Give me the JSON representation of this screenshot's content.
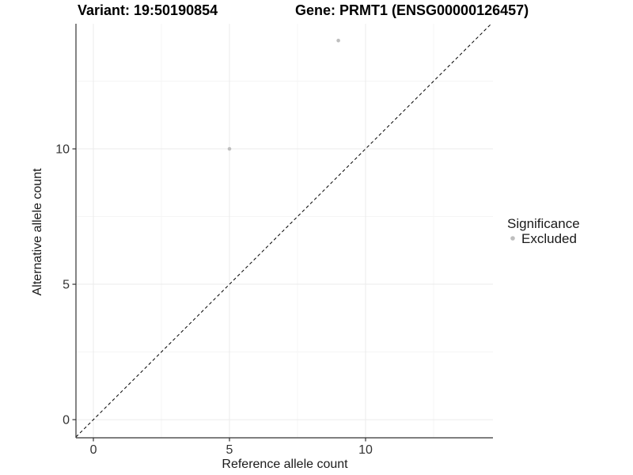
{
  "chart_data": {
    "type": "scatter",
    "title_left": "Variant: 19:50190854",
    "title_right": "Gene: PRMT1 (ENSG00000126457)",
    "xlabel": "Reference allele count",
    "ylabel": "Alternative allele count",
    "x_ticks": [
      0,
      5,
      10
    ],
    "y_ticks": [
      0,
      5,
      10
    ],
    "x_minor_ticks": [
      2.5,
      7.5,
      12.5
    ],
    "y_minor_ticks": [
      2.5,
      7.5,
      12.5
    ],
    "xlim": [
      -0.64,
      14.68
    ],
    "ylim": [
      -0.67,
      14.62
    ],
    "grid": true,
    "identity_line": {
      "type": "y=x",
      "style": "dashed",
      "color": "#000000"
    },
    "series": [
      {
        "name": "Excluded",
        "color": "#bebebe",
        "points": [
          {
            "x": 5,
            "y": 10
          },
          {
            "x": 9,
            "y": 14
          }
        ]
      }
    ],
    "legend": {
      "title": "Significance",
      "position": "right",
      "items": [
        {
          "label": "Excluded",
          "color": "#bebebe"
        }
      ]
    },
    "colors": {
      "background": "#ffffff",
      "grid_major": "#ebebeb",
      "grid_minor": "#f5f5f5",
      "axis_line": "#333333",
      "tick_mark": "#333333",
      "tick_label": "#333333",
      "point": "#bebebe"
    }
  }
}
